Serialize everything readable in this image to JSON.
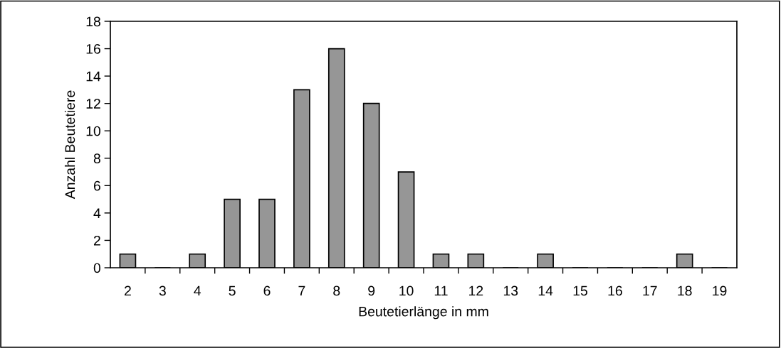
{
  "chart_data": {
    "type": "bar",
    "xlabel": "Beutetierlänge in mm",
    "ylabel": "Anzahl Beutetiere",
    "categories": [
      "2",
      "3",
      "4",
      "5",
      "6",
      "7",
      "8",
      "9",
      "10",
      "11",
      "12",
      "13",
      "14",
      "15",
      "16",
      "17",
      "18",
      "19"
    ],
    "values": [
      1,
      0,
      1,
      5,
      5,
      13,
      16,
      12,
      7,
      1,
      1,
      0,
      1,
      0,
      0,
      0,
      1,
      0
    ],
    "color": "#969696",
    "ylim": [
      0,
      18
    ],
    "yticks": [
      0,
      2,
      4,
      6,
      8,
      10,
      12,
      14,
      16,
      18
    ],
    "grid": false,
    "legend": false
  }
}
